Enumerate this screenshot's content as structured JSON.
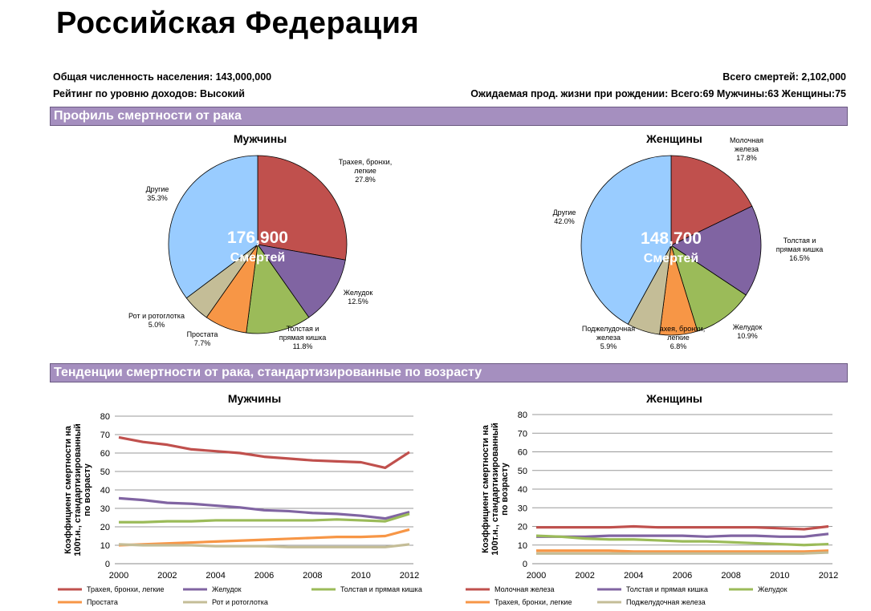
{
  "page_title": "Российская Федерация",
  "info": {
    "population": "Общая численность населения: 143,000,000",
    "income": "Рейтинг по уровню доходов:  Высокий",
    "deaths": "Всего смертей: 2,102,000",
    "life_expectancy": "Ожидаемая прод. жизни при рождении:   Всего:69   Мужчины:63   Женщины:75"
  },
  "section1_title": "Профиль смертности от рака",
  "section2_title": "Тенденции смертности от рака, стандартизированные по возрасту",
  "chart_data": [
    {
      "type": "pie",
      "title": "Мужчины",
      "center_value": "176,900",
      "center_label": "Смертей",
      "slices": [
        {
          "name": "Трахея, бронхи, легкие",
          "pct_label": "27.8%",
          "value": 27.8,
          "color": "#c0504d"
        },
        {
          "name": "Желудок",
          "pct_label": "12.5%",
          "value": 12.5,
          "color": "#8064a2"
        },
        {
          "name": "Толстая и прямая кишка",
          "pct_label": "11.8%",
          "value": 11.8,
          "color": "#9bbb59"
        },
        {
          "name": "Простата",
          "pct_label": "7.7%",
          "value": 7.7,
          "color": "#f79646"
        },
        {
          "name": "Рот и ротоглотка",
          "pct_label": "5.0%",
          "value": 5.0,
          "color": "#c4bd97"
        },
        {
          "name": "Другие",
          "pct_label": "35.3%",
          "value": 35.3,
          "color": "#99ccff"
        }
      ]
    },
    {
      "type": "pie",
      "title": "Женщины",
      "center_value": "148,700",
      "center_label": "Смертей",
      "slices": [
        {
          "name": "Молочная железа",
          "pct_label": "17.8%",
          "value": 17.8,
          "color": "#c0504d"
        },
        {
          "name": "Толстая и прямая кишка",
          "pct_label": "16.5%",
          "value": 16.5,
          "color": "#8064a2"
        },
        {
          "name": "Желудок",
          "pct_label": "10.9%",
          "value": 10.9,
          "color": "#9bbb59"
        },
        {
          "name": "Трахея, бронхи, легкие",
          "pct_label": "6.8%",
          "value": 6.8,
          "color": "#f79646"
        },
        {
          "name": "Поджелудочная железа",
          "pct_label": "5.9%",
          "value": 5.9,
          "color": "#c4bd97"
        },
        {
          "name": "Другие",
          "pct_label": "42.0%",
          "value": 42.0,
          "color": "#99ccff"
        }
      ]
    },
    {
      "type": "line",
      "title": "Мужчины",
      "ylabel": "Коэффициент смертности на 100т.н., стандартизированный по возрасту",
      "ylim": [
        0,
        80
      ],
      "yticks": [
        0,
        10,
        20,
        30,
        40,
        50,
        60,
        70,
        80
      ],
      "xticks": [
        2000,
        2002,
        2004,
        2006,
        2008,
        2010,
        2012
      ],
      "x": [
        2000,
        2001,
        2002,
        2003,
        2004,
        2005,
        2006,
        2007,
        2008,
        2009,
        2010,
        2011,
        2012
      ],
      "series": [
        {
          "name": "Трахея, бронхи, легкие",
          "color": "#c0504d",
          "values": [
            68.5,
            66,
            64.5,
            62,
            61,
            60,
            58,
            57,
            56,
            55.5,
            55,
            52,
            60.5
          ]
        },
        {
          "name": "Желудок",
          "color": "#8064a2",
          "values": [
            35.5,
            34.5,
            33,
            32.5,
            31.5,
            30.5,
            29,
            28.5,
            27.5,
            27,
            26,
            24.5,
            28
          ]
        },
        {
          "name": "Толстая и прямая кишка",
          "color": "#9bbb59",
          "values": [
            22.5,
            22.5,
            23,
            23,
            23.5,
            23.5,
            23.5,
            23.5,
            23.5,
            24,
            23.5,
            23,
            27
          ]
        },
        {
          "name": "Простата",
          "color": "#f79646",
          "values": [
            10,
            10.5,
            11,
            11.5,
            12,
            12.5,
            13,
            13.5,
            14,
            14.5,
            14.5,
            15,
            18.5
          ]
        },
        {
          "name": "Рот и ротоглотка",
          "color": "#c4bd97",
          "values": [
            10.5,
            10,
            10,
            10,
            9.5,
            9.5,
            9.5,
            9,
            9,
            9,
            9,
            9,
            10.5
          ]
        }
      ]
    },
    {
      "type": "line",
      "title": "Женщины",
      "ylabel": "Коэффициент смертности на 100т.н., стандартизированный по возрасту",
      "ylim": [
        0,
        80
      ],
      "yticks": [
        0,
        10,
        20,
        30,
        40,
        50,
        60,
        70,
        80
      ],
      "xticks": [
        2000,
        2002,
        2004,
        2006,
        2008,
        2010,
        2012
      ],
      "x": [
        2000,
        2001,
        2002,
        2003,
        2004,
        2005,
        2006,
        2007,
        2008,
        2009,
        2010,
        2011,
        2012
      ],
      "series": [
        {
          "name": "Молочная железа",
          "color": "#c0504d",
          "values": [
            19.5,
            19.5,
            19.5,
            19.5,
            20,
            19.5,
            19.5,
            19.5,
            19.5,
            19.5,
            19,
            18.5,
            20
          ]
        },
        {
          "name": "Толстая и прямая кишка",
          "color": "#8064a2",
          "values": [
            14.5,
            14.5,
            14.5,
            15,
            15,
            15,
            15,
            14.5,
            15,
            15,
            14.5,
            14.5,
            16
          ]
        },
        {
          "name": "Желудок",
          "color": "#9bbb59",
          "values": [
            15,
            14.5,
            13.5,
            13,
            13,
            12.5,
            12,
            12,
            11.5,
            11,
            10.5,
            10,
            10.5
          ]
        },
        {
          "name": "Трахея, бронхи, легкие",
          "color": "#f79646",
          "values": [
            7,
            7,
            7,
            7,
            6.5,
            6.5,
            6.5,
            6.5,
            6.5,
            6.5,
            6.5,
            6.5,
            7
          ]
        },
        {
          "name": "Поджелудочная железа",
          "color": "#c4bd97",
          "values": [
            5.5,
            5.5,
            5.5,
            5.5,
            5.5,
            5.5,
            5.5,
            5.5,
            5.5,
            5.5,
            5.5,
            5.5,
            6
          ]
        }
      ]
    }
  ]
}
